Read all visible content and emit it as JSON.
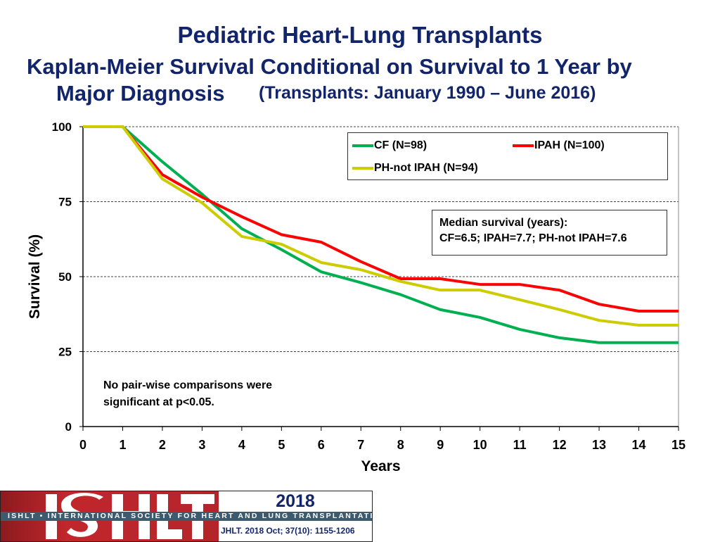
{
  "title": {
    "line1": "Pediatric Heart-Lung Transplants",
    "line2": "Kaplan-Meier Survival Conditional on Survival to 1 Year by",
    "line3": "Major Diagnosis",
    "line3_sub": "(Transplants: January 1990 – June 2016)"
  },
  "chart_data": {
    "type": "line",
    "xlabel": "Years",
    "ylabel": "Survival (%)",
    "xlim": [
      0,
      15
    ],
    "ylim": [
      0,
      100
    ],
    "xticks": [
      "0",
      "1",
      "2",
      "3",
      "4",
      "5",
      "6",
      "7",
      "8",
      "9",
      "10",
      "11",
      "12",
      "13",
      "14",
      "15"
    ],
    "yticks": [
      "0",
      "25",
      "50",
      "75",
      "100"
    ],
    "grid": "horizontal dashed",
    "legend_placement": "top-right",
    "x": [
      0,
      1,
      2,
      3,
      4,
      5,
      6,
      7,
      8,
      9,
      10,
      11,
      12,
      13,
      14,
      15
    ],
    "series": [
      {
        "name": "CF (N=98)",
        "color": "#00b050",
        "values": [
          100,
          100,
          88.3,
          77.5,
          66,
          59,
          51.6,
          48,
          44,
          39,
          36.4,
          32.4,
          29.6,
          28,
          28,
          28
        ]
      },
      {
        "name": "IPAH (N=100)",
        "color": "#ff0000",
        "values": [
          100,
          100,
          84,
          76.5,
          70,
          64,
          61.5,
          55,
          49.3,
          49.3,
          47.4,
          47.4,
          45.5,
          40.8,
          38.5,
          38.5
        ]
      },
      {
        "name": "PH-not IPAH (N=94)",
        "color": "#cccc00",
        "values": [
          100,
          100,
          82.6,
          74.6,
          63.4,
          60.8,
          54.7,
          52.3,
          48.4,
          45.5,
          45.5,
          42.3,
          39,
          35.4,
          33.8,
          33.8
        ]
      }
    ],
    "annotations": {
      "median_title": "Median survival (years):",
      "median_values": "CF=6.5; IPAH=7.7; PH-not IPAH=7.6",
      "note1": "No pair-wise comparisons were",
      "note2": "significant at p<0.05."
    }
  },
  "footer": {
    "logo": "ISHLT",
    "band": "ISHLT • INTERNATIONAL SOCIETY FOR HEART AND LUNG TRANSPLANTATION",
    "year": "2018",
    "citation": "JHLT. 2018 Oct; 37(10): 1155-1206"
  }
}
